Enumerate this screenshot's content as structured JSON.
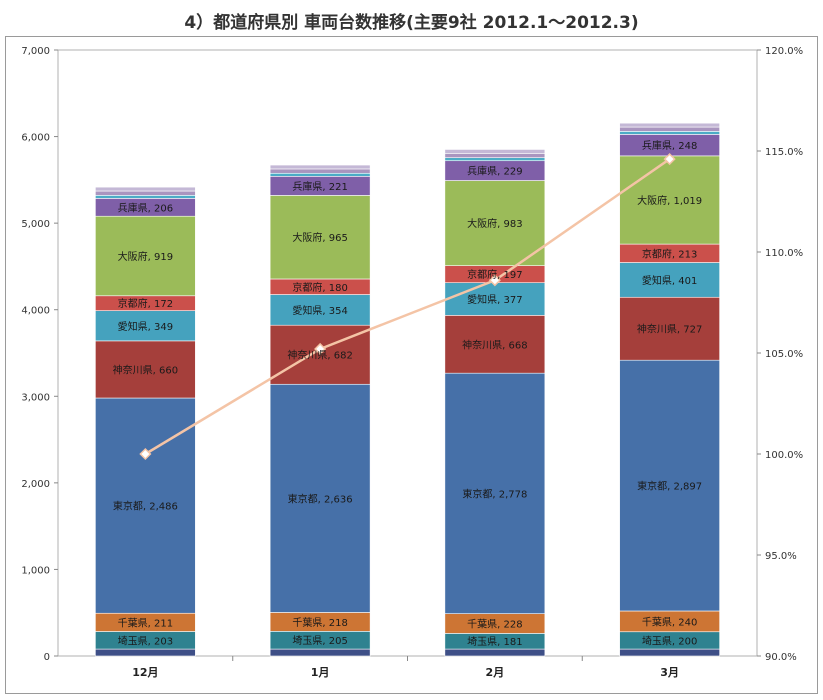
{
  "chart_data": {
    "type": "bar",
    "title": "4）都道府県別 車両台数推移(主要9社 2012.1～2012.3)",
    "categories": [
      "12月",
      "1月",
      "2月",
      "3月"
    ],
    "yticks": [
      "0",
      "1,000",
      "2,000",
      "3,000",
      "4,000",
      "5,000",
      "6,000",
      "7,000"
    ],
    "ylim": [
      0,
      7000
    ],
    "y2ticks": [
      "90.0%",
      "95.0%",
      "100.0%",
      "105.0%",
      "110.0%",
      "115.0%",
      "120.0%"
    ],
    "y2lim": [
      90,
      120
    ],
    "grid": false,
    "series": [
      {
        "name": "",
        "values": [
          80,
          80,
          80,
          80
        ],
        "color": "#3e4f87",
        "labels": [
          "",
          "",
          "",
          ""
        ]
      },
      {
        "name": "埼玉県",
        "values": [
          203,
          205,
          181,
          200
        ],
        "color": "#2f8290",
        "labels": [
          "埼玉県, 203",
          "埼玉県, 205",
          "埼玉県, 181",
          "埼玉県, 200"
        ]
      },
      {
        "name": "千葉県",
        "values": [
          211,
          218,
          228,
          240
        ],
        "color": "#cd7534",
        "labels": [
          "千葉県, 211",
          "千葉県, 218",
          "千葉県, 228",
          "千葉県, 240"
        ]
      },
      {
        "name": "東京都",
        "values": [
          2486,
          2636,
          2778,
          2897
        ],
        "color": "#4670a8",
        "labels": [
          "東京都, 2,486",
          "東京都, 2,636",
          "東京都, 2,778",
          "東京都, 2,897"
        ]
      },
      {
        "name": "神奈川県",
        "values": [
          660,
          682,
          668,
          727
        ],
        "color": "#a53f3b",
        "labels": [
          "神奈川県, 660",
          "神奈川県, 682",
          "神奈川県, 668",
          "神奈川県, 727"
        ]
      },
      {
        "name": "愛知県",
        "values": [
          349,
          354,
          377,
          401
        ],
        "color": "#45a2be",
        "labels": [
          "愛知県, 349",
          "愛知県, 354",
          "愛知県, 377",
          "愛知県, 401"
        ]
      },
      {
        "name": "京都府",
        "values": [
          172,
          180,
          197,
          213
        ],
        "color": "#cb504b",
        "labels": [
          "京都府, 172",
          "京都府, 180",
          "京都府, 197",
          "京都府, 213"
        ]
      },
      {
        "name": "大阪府",
        "values": [
          919,
          965,
          983,
          1019
        ],
        "color": "#9bbb59",
        "labels": [
          "大阪府, 919",
          "大阪府, 965",
          "大阪府, 983",
          "大阪府, 1,019"
        ]
      },
      {
        "name": "兵庫県",
        "values": [
          206,
          221,
          229,
          248
        ],
        "color": "#7f5fa8",
        "labels": [
          "兵庫県, 206",
          "兵庫県, 221",
          "兵庫県, 229",
          "兵庫県, 248"
        ]
      },
      {
        "name": "",
        "values": [
          35,
          35,
          35,
          35
        ],
        "color": "#4bacc6",
        "labels": [
          "",
          "",
          "",
          ""
        ]
      },
      {
        "name": "",
        "values": [
          50,
          50,
          50,
          50
        ],
        "color": "#a995bf",
        "labels": [
          "",
          "",
          "",
          ""
        ]
      },
      {
        "name": "",
        "values": [
          45,
          45,
          45,
          45
        ],
        "color": "#c4b8d6",
        "labels": [
          "",
          "",
          "",
          ""
        ]
      }
    ],
    "line": {
      "name": "",
      "axis": "right",
      "values": [
        100.0,
        105.2,
        108.6,
        114.6
      ],
      "color": "#f4c4a6"
    }
  }
}
